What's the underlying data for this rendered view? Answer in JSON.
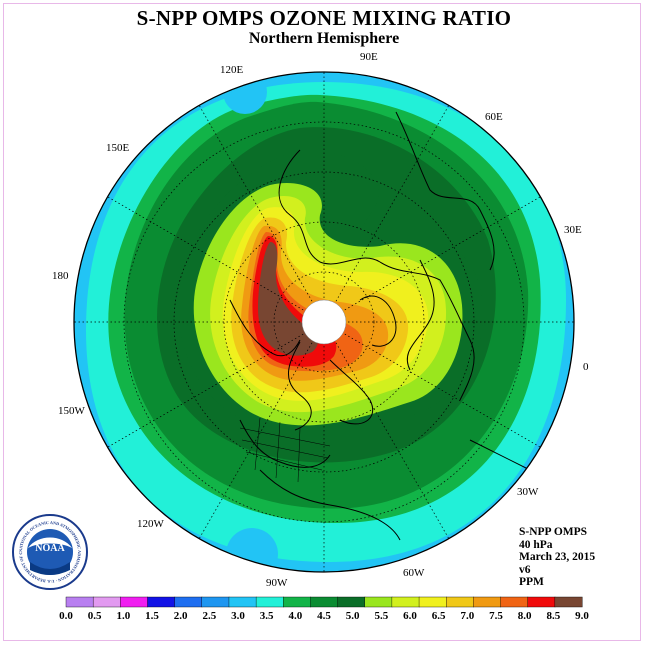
{
  "title": "S-NPP OMPS OZONE MIXING RATIO",
  "subtitle": "Northern Hemisphere",
  "longitude_labels": [
    "90E",
    "60E",
    "30E",
    "0",
    "30W",
    "60W",
    "90W",
    "120W",
    "150W",
    "180",
    "150E",
    "120E"
  ],
  "info": {
    "instrument": "S-NPP OMPS",
    "pressure": "40 hPa",
    "date": "March 23, 2015",
    "version": "v6",
    "units": "PPM"
  },
  "logo_text": "NOAA",
  "logo_ring_text": "NATIONAL OCEANIC AND ATMOSPHERIC ADMINISTRATION · U.S. DEPARTMENT OF COMMERCE",
  "colorbar": {
    "ticks": [
      "0.0",
      "0.5",
      "1.0",
      "1.5",
      "2.0",
      "2.5",
      "3.0",
      "3.5",
      "4.0",
      "4.5",
      "5.0",
      "5.5",
      "6.0",
      "6.5",
      "7.0",
      "7.5",
      "8.0",
      "8.5",
      "9.0"
    ],
    "colors": [
      "#b87ff0",
      "#e29af0",
      "#f01ef0",
      "#1212e6",
      "#1e6ef0",
      "#1e96f0",
      "#22c4f5",
      "#22f0d8",
      "#12b448",
      "#0a8c32",
      "#0a6e28",
      "#9ae61e",
      "#d2f01e",
      "#f0f01e",
      "#f0c818",
      "#f09a12",
      "#f06414",
      "#f00a0a",
      "#784632"
    ]
  },
  "map_colors": {
    "light_blue": "#22c4f5",
    "cyan": "#22f0d8",
    "light_green": "#12b448",
    "green": "#0a8c32",
    "dark_green": "#0a6e28",
    "yellow_green": "#9ae61e",
    "lime": "#d2f01e",
    "yellow": "#f0f01e",
    "gold": "#f0c818",
    "orange": "#f09a12",
    "red_orange": "#f06414",
    "red": "#f00a0a",
    "brown": "#784632"
  }
}
